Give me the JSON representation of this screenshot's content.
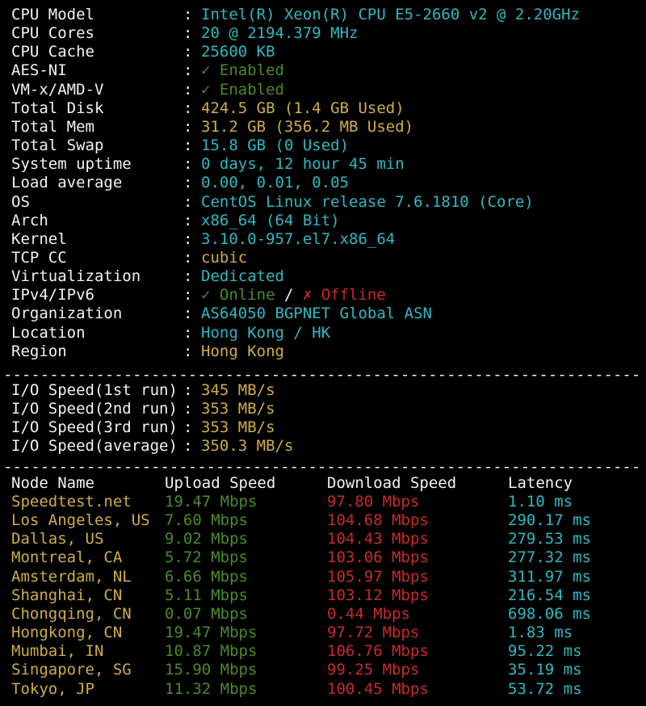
{
  "colors": {
    "background": "#000000",
    "label": "#f2f2f2",
    "cyan": "#2fb8c2",
    "yellow": "#cfad46",
    "green": "#4b8a2a",
    "red": "#c92a2a"
  },
  "sysinfo": {
    "separator": ":",
    "rows": [
      {
        "label": "CPU Model",
        "value": "Intel(R) Xeon(R) CPU E5-2660 v2 @ 2.20GHz",
        "color": "cyan"
      },
      {
        "label": "CPU Cores",
        "value": "20 @ 2194.379 MHz",
        "color": "cyan"
      },
      {
        "label": "CPU Cache",
        "value": "25600 KB",
        "color": "cyan"
      },
      {
        "label": "AES-NI",
        "value": "✓ Enabled",
        "color": "green"
      },
      {
        "label": "VM-x/AMD-V",
        "value": "✓ Enabled",
        "color": "green"
      },
      {
        "label": "Total Disk",
        "value": "424.5 GB (1.4 GB Used)",
        "color": "yellow"
      },
      {
        "label": "Total Mem",
        "value": "31.2 GB (356.2 MB Used)",
        "color": "yellow"
      },
      {
        "label": "Total Swap",
        "value": "15.8 GB (0 Used)",
        "color": "cyan"
      },
      {
        "label": "System uptime",
        "value": "0 days, 12 hour 45 min",
        "color": "cyan"
      },
      {
        "label": "Load average",
        "value": "0.00, 0.01, 0.05",
        "color": "cyan"
      },
      {
        "label": "OS",
        "value": "CentOS Linux release 7.6.1810 (Core)",
        "color": "cyan"
      },
      {
        "label": "Arch",
        "value": "x86_64 (64 Bit)",
        "color": "cyan"
      },
      {
        "label": "Kernel",
        "value": "3.10.0-957.el7.x86_64",
        "color": "cyan"
      },
      {
        "label": "TCP CC",
        "value": "cubic",
        "color": "yellow"
      },
      {
        "label": "Virtualization",
        "value": "Dedicated",
        "color": "cyan"
      }
    ],
    "ip_row": {
      "label": "IPv4/IPv6",
      "online": "✓ Online",
      "slash": " / ",
      "offline": "✗ Offline"
    },
    "rows_after": [
      {
        "label": "Organization",
        "value": "AS64050 BGPNET Global ASN",
        "color": "cyan"
      },
      {
        "label": "Location",
        "value": "Hong Kong / HK",
        "color": "cyan"
      },
      {
        "label": "Region",
        "value": "Hong Kong",
        "color": "yellow"
      }
    ]
  },
  "divider": "----------------------------------------------------------------------",
  "io": {
    "rows": [
      {
        "label": "I/O Speed(1st run)",
        "value": "345 MB/s"
      },
      {
        "label": "I/O Speed(2nd run)",
        "value": "353 MB/s"
      },
      {
        "label": "I/O Speed(3rd run)",
        "value": "353 MB/s"
      },
      {
        "label": "I/O Speed(average)",
        "value": "350.3 MB/s"
      }
    ]
  },
  "speedtest": {
    "headers": {
      "node": "Node Name",
      "upload": "Upload Speed",
      "download": "Download Speed",
      "latency": "Latency"
    },
    "rows": [
      {
        "node": "Speedtest.net",
        "upload": "19.47 Mbps",
        "download": "97.80 Mbps",
        "latency": "1.10 ms"
      },
      {
        "node": "Los Angeles, US",
        "upload": "7.60 Mbps",
        "download": "104.68 Mbps",
        "latency": "290.17 ms"
      },
      {
        "node": "Dallas, US",
        "upload": "9.02 Mbps",
        "download": "104.43 Mbps",
        "latency": "279.53 ms"
      },
      {
        "node": "Montreal, CA",
        "upload": "5.72 Mbps",
        "download": "103.06 Mbps",
        "latency": "277.32 ms"
      },
      {
        "node": "Amsterdam, NL",
        "upload": "6.66 Mbps",
        "download": "105.97 Mbps",
        "latency": "311.97 ms"
      },
      {
        "node": "Shanghai, CN",
        "upload": "5.11 Mbps",
        "download": "103.12 Mbps",
        "latency": "216.54 ms"
      },
      {
        "node": "Chongqing, CN",
        "upload": "0.07 Mbps",
        "download": "0.44 Mbps",
        "latency": "698.06 ms"
      },
      {
        "node": "Hongkong, CN",
        "upload": "19.47 Mbps",
        "download": "97.72 Mbps",
        "latency": "1.83 ms"
      },
      {
        "node": "Mumbai, IN",
        "upload": "10.87 Mbps",
        "download": "106.76 Mbps",
        "latency": "95.22 ms"
      },
      {
        "node": "Singapore, SG",
        "upload": "15.90 Mbps",
        "download": "99.25 Mbps",
        "latency": "35.19 ms"
      },
      {
        "node": "Tokyo, JP",
        "upload": "11.32 Mbps",
        "download": "100.45 Mbps",
        "latency": "53.72 ms"
      }
    ]
  }
}
